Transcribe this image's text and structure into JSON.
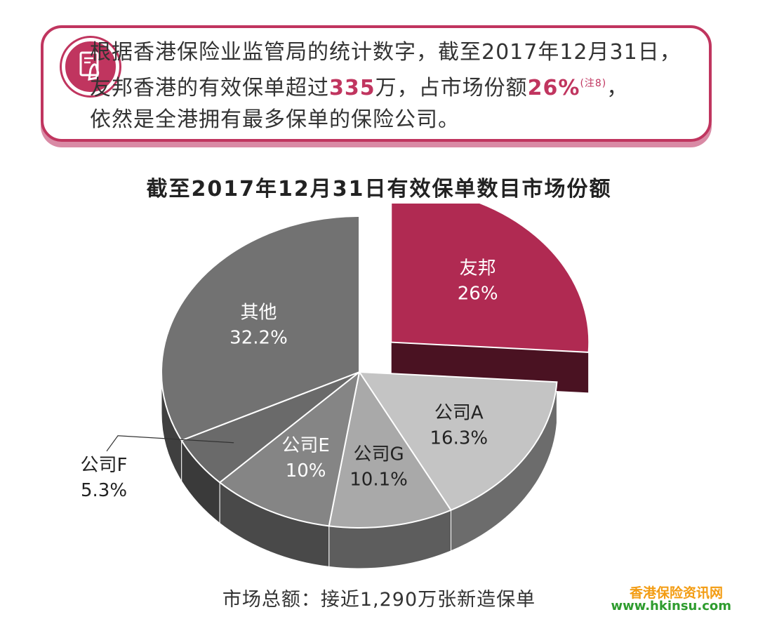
{
  "info": {
    "line1": "根据香港保险业监管局的统计数字，截至2017年12月31日，",
    "line2_a": "友邦香港的有效保单超过",
    "line2_num": "335",
    "line2_b": "万，占市场份额",
    "line2_pct": "26%",
    "line2_note": "(注8)",
    "line2_c": "，",
    "line3": "依然是全港拥有最多保单的保险公司。",
    "icon": "document-hand-icon",
    "accent": "#c0355f"
  },
  "chart_data": {
    "type": "pie",
    "title": "截至2017年12月31日有效保单数目市场份额",
    "unit": "%",
    "slices": [
      {
        "label": "友邦",
        "value": 26,
        "value_text": "26%",
        "color": "#b02a52",
        "exploded": true
      },
      {
        "label": "公司A",
        "value": 16.3,
        "value_text": "16.3%",
        "color": "#c4c4c4"
      },
      {
        "label": "公司G",
        "value": 10.1,
        "value_text": "10.1%",
        "color": "#a9a9a9"
      },
      {
        "label": "公司E",
        "value": 10,
        "value_text": "10%",
        "color": "#858585"
      },
      {
        "label": "公司F",
        "value": 5.3,
        "value_text": "5.3%",
        "color": "#6a6a6a",
        "label_outside": true
      },
      {
        "label": "其他",
        "value": 32.2,
        "value_text": "32.2%",
        "color": "#727272"
      }
    ]
  },
  "footer": "市场总额：接近1,290万张新造保单",
  "watermark": {
    "line1": "香港保险资讯网",
    "line2": "www.hkinsu.com"
  }
}
